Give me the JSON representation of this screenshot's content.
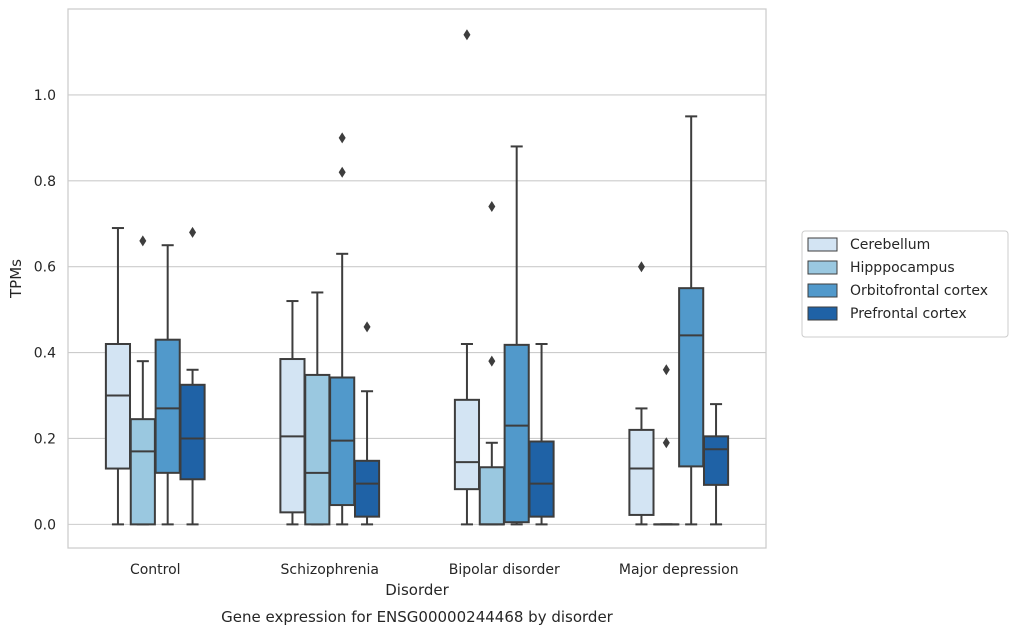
{
  "chart_data": {
    "type": "box",
    "title": "Gene expression for ENSG00000244468 by disorder",
    "xlabel": "Disorder",
    "ylabel": "TPMs",
    "ylim": [
      -0.055,
      1.2
    ],
    "yticks": [
      "0.0",
      "0.2",
      "0.4",
      "0.6",
      "0.8",
      "1.0"
    ],
    "grid": true,
    "legend_position": "right",
    "categories": [
      "Control",
      "Schizophrenia",
      "Bipolar disorder",
      "Major depression"
    ],
    "series": [
      {
        "name": "Cerebellum",
        "color": "#d3e4f3",
        "boxes": [
          {
            "whislo": 0.0,
            "q1": 0.13,
            "med": 0.3,
            "q3": 0.42,
            "whishi": 0.69,
            "fliers": []
          },
          {
            "whislo": 0.0,
            "q1": 0.028,
            "med": 0.205,
            "q3": 0.385,
            "whishi": 0.52,
            "fliers": []
          },
          {
            "whislo": 0.0,
            "q1": 0.082,
            "med": 0.145,
            "q3": 0.29,
            "whishi": 0.42,
            "fliers": [
              1.14
            ]
          },
          {
            "whislo": 0.0,
            "q1": 0.022,
            "med": 0.13,
            "q3": 0.22,
            "whishi": 0.27,
            "fliers": [
              0.6
            ]
          }
        ]
      },
      {
        "name": "Hipppocampus",
        "color": "#9ac8e0",
        "boxes": [
          {
            "whislo": 0.0,
            "q1": 0.0,
            "med": 0.17,
            "q3": 0.245,
            "whishi": 0.38,
            "fliers": [
              0.66
            ]
          },
          {
            "whislo": 0.0,
            "q1": 0.0,
            "med": 0.12,
            "q3": 0.348,
            "whishi": 0.54,
            "fliers": []
          },
          {
            "whislo": 0.0,
            "q1": 0.0,
            "med": 0.0,
            "q3": 0.133,
            "whishi": 0.19,
            "fliers": [
              0.38,
              0.74
            ]
          },
          {
            "whislo": 0.0,
            "q1": 0.0,
            "med": 0.0,
            "q3": 0.0,
            "whishi": 0.0,
            "fliers": [
              0.19,
              0.36
            ]
          }
        ]
      },
      {
        "name": "Orbitofrontal cortex",
        "color": "#5199cb",
        "boxes": [
          {
            "whislo": 0.0,
            "q1": 0.12,
            "med": 0.27,
            "q3": 0.43,
            "whishi": 0.65,
            "fliers": []
          },
          {
            "whislo": 0.0,
            "q1": 0.045,
            "med": 0.195,
            "q3": 0.342,
            "whishi": 0.63,
            "fliers": [
              0.82,
              0.9
            ]
          },
          {
            "whislo": 0.0,
            "q1": 0.005,
            "med": 0.23,
            "q3": 0.418,
            "whishi": 0.88,
            "fliers": []
          },
          {
            "whislo": 0.0,
            "q1": 0.135,
            "med": 0.44,
            "q3": 0.55,
            "whishi": 0.95,
            "fliers": []
          }
        ]
      },
      {
        "name": "Prefrontal cortex",
        "color": "#1f62a6",
        "boxes": [
          {
            "whislo": 0.0,
            "q1": 0.105,
            "med": 0.2,
            "q3": 0.325,
            "whishi": 0.36,
            "fliers": [
              0.68
            ]
          },
          {
            "whislo": 0.0,
            "q1": 0.018,
            "med": 0.095,
            "q3": 0.148,
            "whishi": 0.31,
            "fliers": [
              0.46
            ]
          },
          {
            "whislo": 0.0,
            "q1": 0.018,
            "med": 0.095,
            "q3": 0.193,
            "whishi": 0.42,
            "fliers": []
          },
          {
            "whislo": 0.0,
            "q1": 0.092,
            "med": 0.175,
            "q3": 0.205,
            "whishi": 0.28,
            "fliers": []
          }
        ]
      }
    ]
  }
}
